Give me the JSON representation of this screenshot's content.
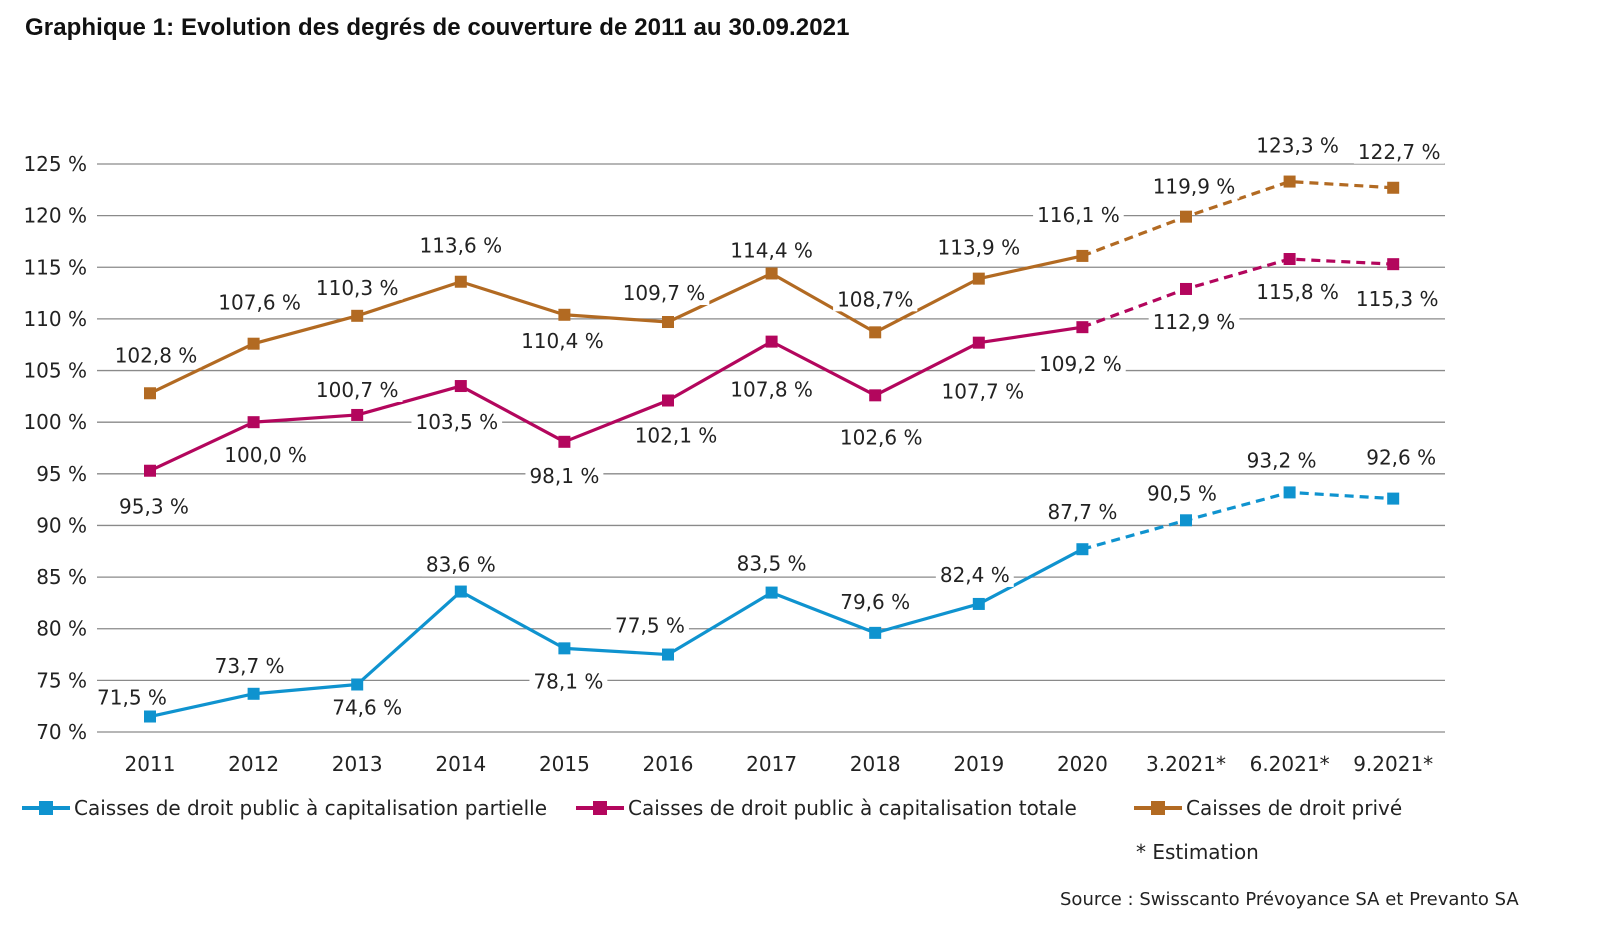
{
  "title": "Graphique 1: Evolution des degrés de couverture de 2011 au 30.09.2021",
  "chart_data": {
    "type": "line",
    "title": "Graphique 1: Evolution des degrés de couverture de 2011 au 30.09.2021",
    "xlabel": "",
    "ylabel": "",
    "ylim": [
      70,
      125
    ],
    "yticks": [
      70,
      75,
      80,
      85,
      90,
      95,
      100,
      105,
      110,
      115,
      120,
      125
    ],
    "ytick_labels": [
      "70 %",
      "75 %",
      "80 %",
      "85 %",
      "90 %",
      "95 %",
      "100 %",
      "105 %",
      "110 %",
      "115 %",
      "120 %",
      "125 %"
    ],
    "grid": "horizontal",
    "categories": [
      "2011",
      "2012",
      "2013",
      "2014",
      "2015",
      "2016",
      "2017",
      "2018",
      "2019",
      "2020",
      "3.2021*",
      "6.2021*",
      "9.2021*"
    ],
    "estimate_from_index": 9,
    "series": [
      {
        "name": "Caisses de droit public à capitalisation partielle",
        "color": "#0f93cf",
        "values": [
          71.5,
          73.7,
          74.6,
          83.6,
          78.1,
          77.5,
          83.5,
          79.6,
          82.4,
          87.7,
          90.5,
          93.2,
          92.6
        ],
        "labels": [
          "71,5 %",
          "73,7 %",
          "74,6 %",
          "83,6 %",
          "78,1 %",
          "77,5 %",
          "83,5 %",
          "79,6 %",
          "82,4 %",
          "87,7 %",
          "90,5 %",
          "93,2 %",
          "92,6 %"
        ]
      },
      {
        "name": "Caisses de droit public à capitalisation totale",
        "color": "#b3065d",
        "values": [
          95.3,
          100.0,
          100.7,
          103.5,
          98.1,
          102.1,
          107.8,
          102.6,
          107.7,
          109.2,
          112.9,
          115.8,
          115.3
        ],
        "labels": [
          "95,3 %",
          "100,0 %",
          "100,7 %",
          "103,5 %",
          "98,1 %",
          "102,1 %",
          "107,8 %",
          "102,6 %",
          "107,7 %",
          "109,2 %",
          "112,9 %",
          "115,8 %",
          "115,3 %"
        ]
      },
      {
        "name": "Caisses de droit privé",
        "color": "#b26a22",
        "values": [
          102.8,
          107.6,
          110.3,
          113.6,
          110.4,
          109.7,
          114.4,
          108.7,
          113.9,
          116.1,
          119.9,
          123.3,
          122.7
        ],
        "labels": [
          "102,8 %",
          "107,6 %",
          "110,3 %",
          "113,6 %",
          "110,4 %",
          "109,7 %",
          "114,4 %",
          "108,7%",
          "113,9 %",
          "116,1 %",
          "119,9 %",
          "123,3 %",
          "122,7 %"
        ]
      }
    ],
    "legend": "bottom",
    "note": "* Estimation",
    "source": "Source : Swisscanto Prévoyance SA et Prevanto SA"
  }
}
